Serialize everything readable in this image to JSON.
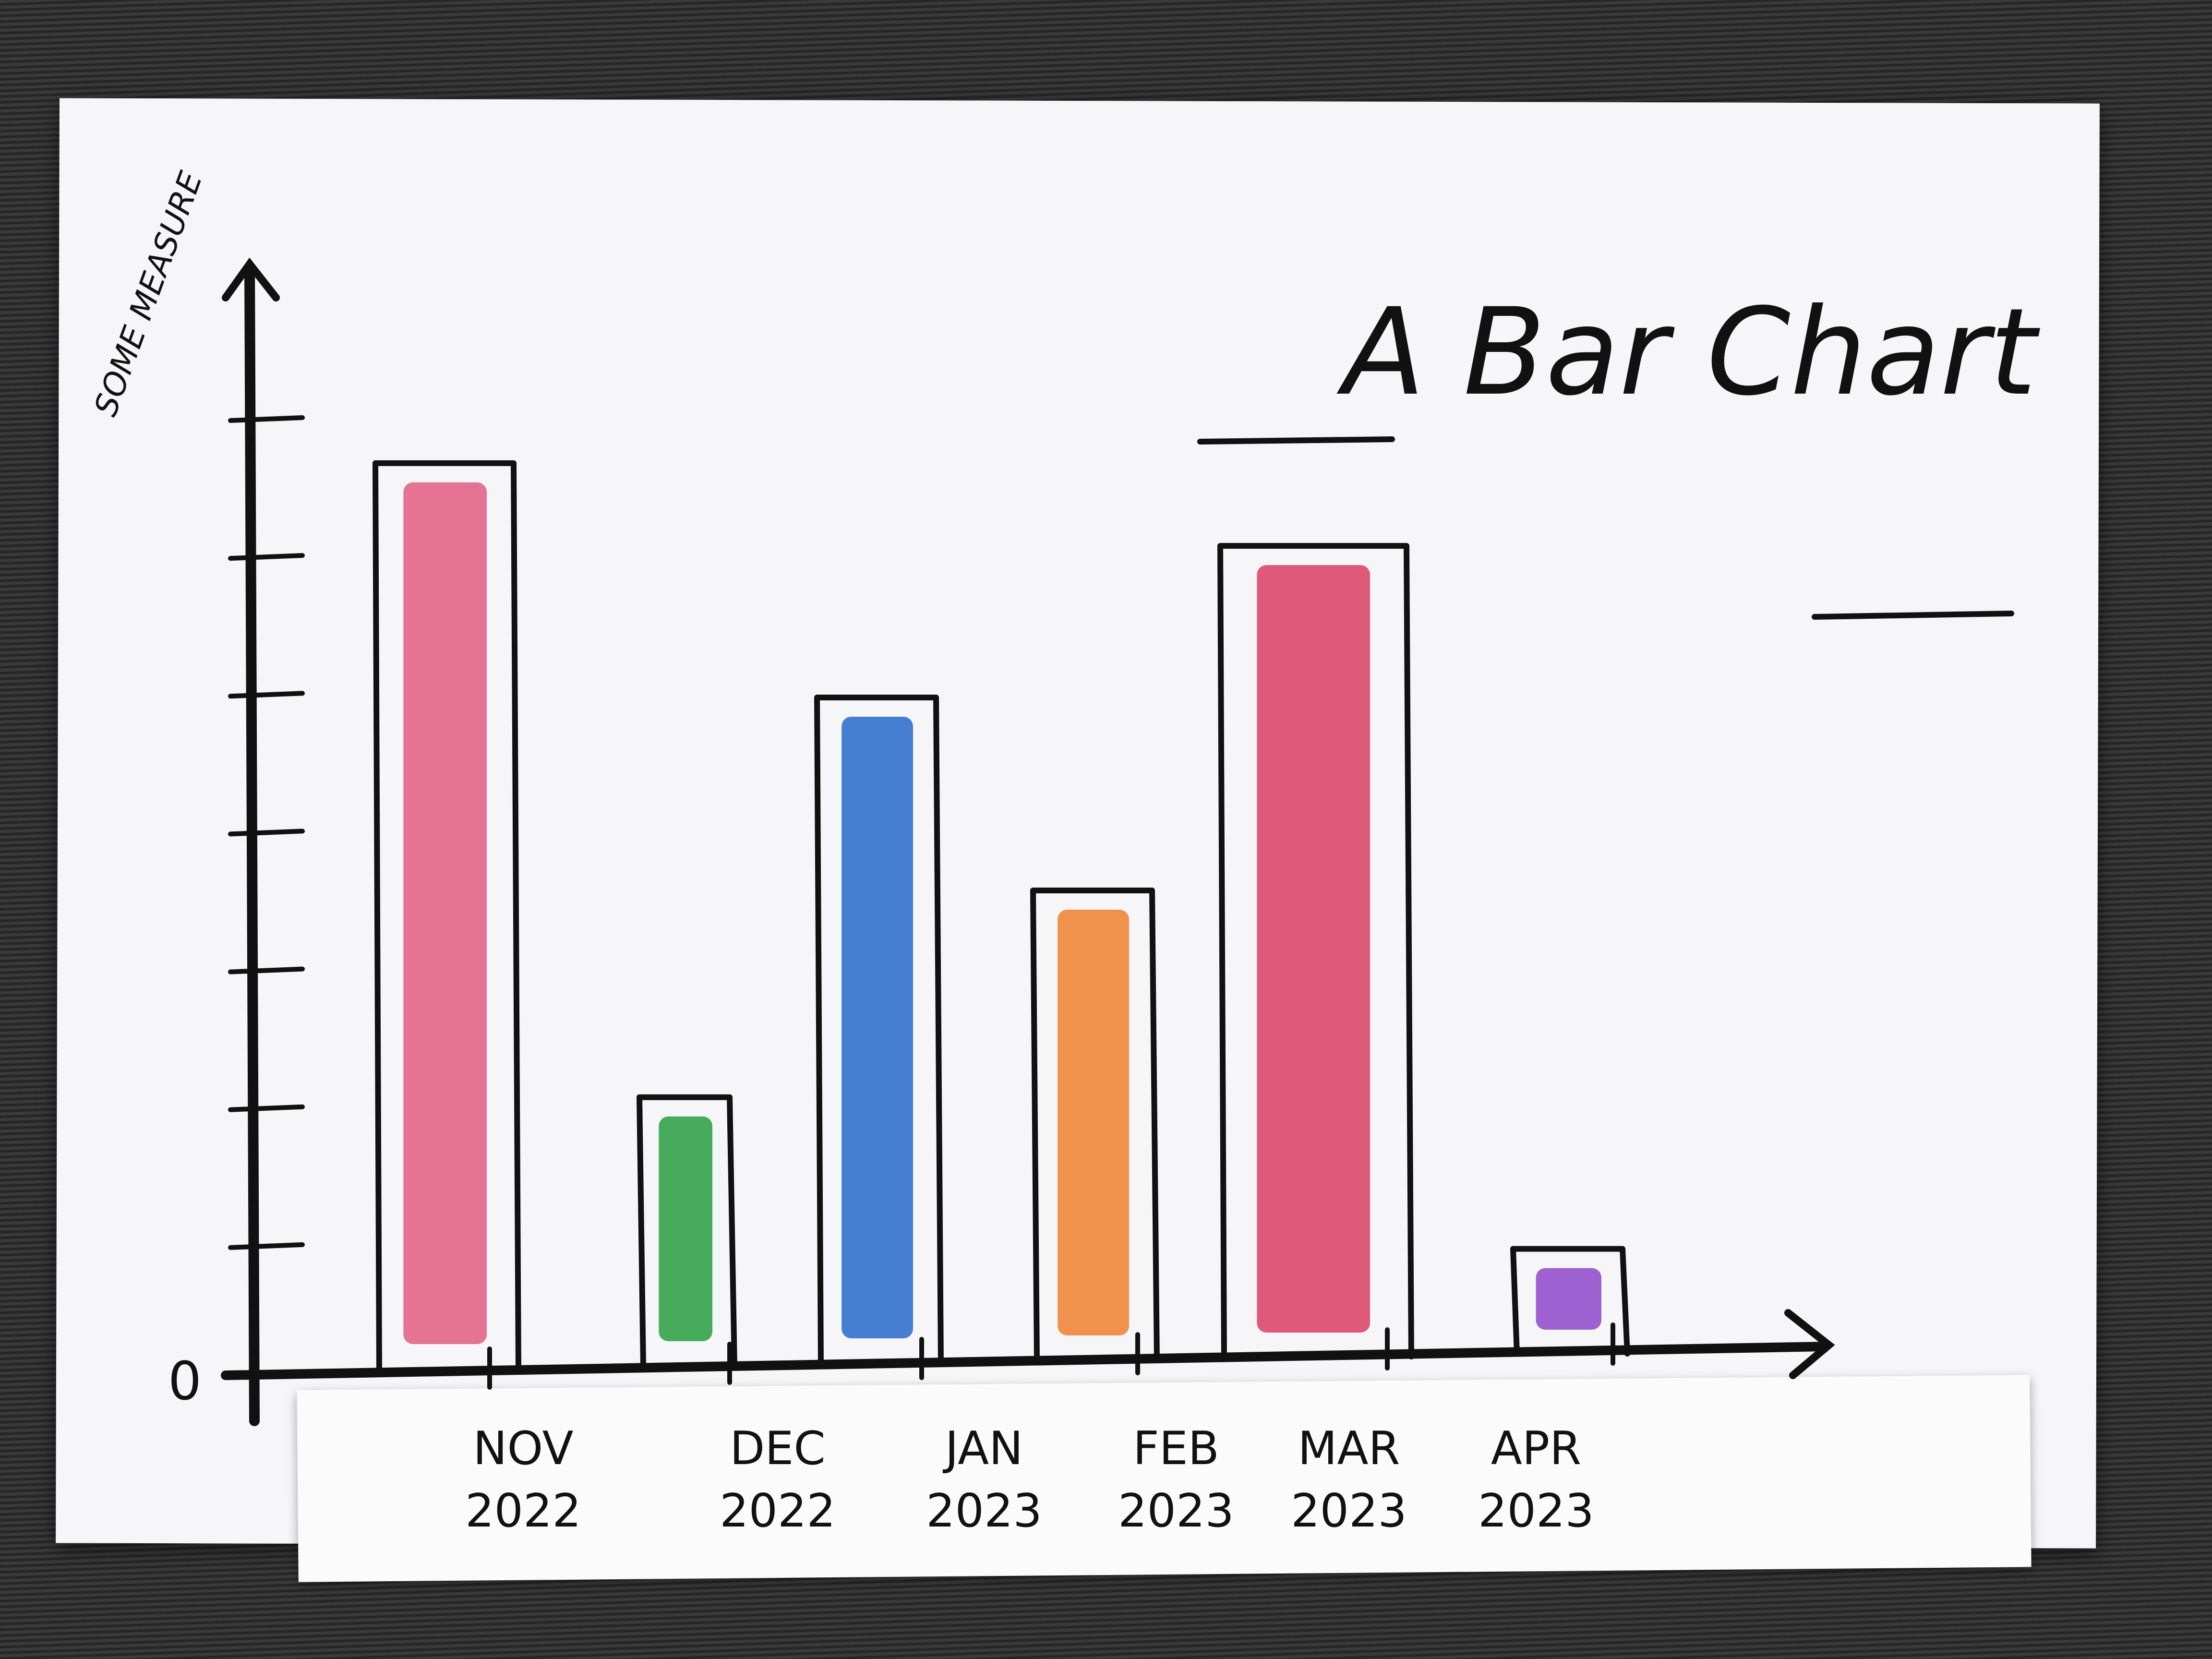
{
  "chart_data": {
    "type": "bar",
    "title": "A Bar Chart",
    "ylabel": "SOME MEASURE",
    "xlabel": "",
    "y_zero_label": "0",
    "ylim": [
      0,
      7
    ],
    "y_ticks": [
      1,
      2,
      3,
      4,
      5,
      6,
      7
    ],
    "categories": [
      {
        "line1": "NOV",
        "line2": "2022"
      },
      {
        "line1": "DEC",
        "line2": "2022"
      },
      {
        "line1": "JAN",
        "line2": "2023"
      },
      {
        "line1": "FEB",
        "line2": "2023"
      },
      {
        "line1": "MAR",
        "line2": "2023"
      },
      {
        "line1": "APR",
        "line2": "2023"
      }
    ],
    "values": [
      6.6,
      2.0,
      4.9,
      3.5,
      6.0,
      0.9
    ],
    "bar_colors": [
      "#e0557d",
      "#1f9a3a",
      "#1f63c8",
      "#ef7a28",
      "#d9365e",
      "#8a3fc8"
    ],
    "grid": false,
    "legend": "none"
  }
}
